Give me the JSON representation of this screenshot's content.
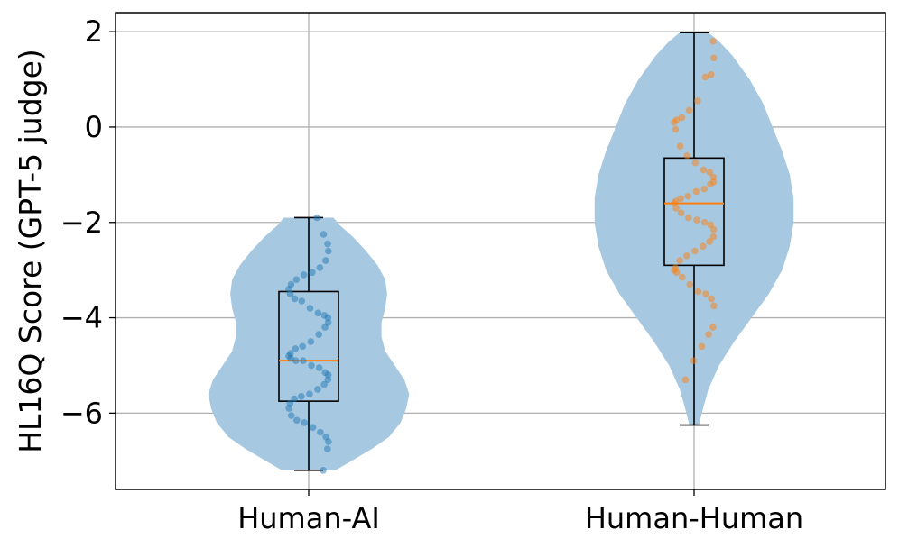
{
  "chart_data": {
    "type": "violin",
    "categories": [
      "Human-AI",
      "Human-Human"
    ],
    "xlabel": "",
    "ylabel": "HL16Q Score (GPT-5 judge)",
    "ylim": [
      -7.6,
      2.4
    ],
    "yticks": [
      2,
      0,
      -2,
      -4,
      -6
    ],
    "ytick_labels": [
      "2",
      "0",
      "−2",
      "−4",
      "−6"
    ],
    "grid": true,
    "colors": {
      "violin_fill": "#a6c8e1",
      "box_edge": "#000000",
      "median": "#ff7f0e",
      "points_series_1": "#1f77b4",
      "points_series_2": "#ff7f0e",
      "grid": "#b0b0b0"
    },
    "series": [
      {
        "category": "Human-AI",
        "min": -7.2,
        "q1": -5.75,
        "median": -4.9,
        "q3": -3.45,
        "max": -1.9,
        "violin_profile": [
          [
            -7.2,
            0.28
          ],
          [
            -7.0,
            0.45
          ],
          [
            -6.75,
            0.66
          ],
          [
            -6.5,
            0.84
          ],
          [
            -6.2,
            0.96
          ],
          [
            -5.9,
            1.02
          ],
          [
            -5.6,
            1.05
          ],
          [
            -5.3,
            1.0
          ],
          [
            -5.0,
            0.9
          ],
          [
            -4.7,
            0.8
          ],
          [
            -4.4,
            0.76
          ],
          [
            -4.1,
            0.76
          ],
          [
            -3.8,
            0.8
          ],
          [
            -3.5,
            0.82
          ],
          [
            -3.2,
            0.8
          ],
          [
            -2.9,
            0.72
          ],
          [
            -2.6,
            0.6
          ],
          [
            -2.3,
            0.46
          ],
          [
            -2.05,
            0.32
          ],
          [
            -1.9,
            0.26
          ]
        ],
        "points": [
          -1.9,
          -2.25,
          -2.45,
          -2.6,
          -2.8,
          -2.95,
          -3.05,
          -3.1,
          -3.2,
          -3.3,
          -3.4,
          -3.5,
          -3.6,
          -3.65,
          -3.8,
          -3.9,
          -3.95,
          -4.0,
          -4.1,
          -4.2,
          -4.35,
          -4.5,
          -4.6,
          -4.65,
          -4.75,
          -4.8,
          -4.85,
          -4.9,
          -4.9,
          -5.0,
          -5.05,
          -5.15,
          -5.2,
          -5.3,
          -5.4,
          -5.5,
          -5.6,
          -5.65,
          -5.7,
          -5.8,
          -5.9,
          -6.05,
          -6.15,
          -6.2,
          -6.3,
          -6.4,
          -6.5,
          -6.6,
          -6.75,
          -7.2
        ]
      },
      {
        "category": "Human-Human",
        "min": -6.25,
        "q1": -2.9,
        "median": -1.6,
        "q3": -0.65,
        "max": 1.98,
        "violin_profile": [
          [
            -6.25,
            0.05
          ],
          [
            -6.0,
            0.08
          ],
          [
            -5.5,
            0.15
          ],
          [
            -5.0,
            0.26
          ],
          [
            -4.5,
            0.42
          ],
          [
            -4.0,
            0.6
          ],
          [
            -3.5,
            0.78
          ],
          [
            -3.0,
            0.92
          ],
          [
            -2.5,
            1.0
          ],
          [
            -2.0,
            1.04
          ],
          [
            -1.5,
            1.04
          ],
          [
            -1.0,
            1.0
          ],
          [
            -0.5,
            0.92
          ],
          [
            0.0,
            0.82
          ],
          [
            0.5,
            0.72
          ],
          [
            1.0,
            0.58
          ],
          [
            1.5,
            0.4
          ],
          [
            1.8,
            0.26
          ],
          [
            1.98,
            0.15
          ]
        ],
        "points": [
          1.8,
          1.45,
          1.1,
          1.05,
          0.55,
          0.35,
          0.2,
          0.15,
          0.1,
          -0.05,
          -0.4,
          -0.6,
          -0.75,
          -0.9,
          -0.95,
          -1.05,
          -1.15,
          -1.2,
          -1.3,
          -1.35,
          -1.45,
          -1.5,
          -1.55,
          -1.6,
          -1.7,
          -1.8,
          -1.9,
          -1.95,
          -2.0,
          -2.05,
          -2.15,
          -2.3,
          -2.4,
          -2.5,
          -2.6,
          -2.7,
          -2.8,
          -2.95,
          -3.0,
          -3.05,
          -3.15,
          -3.3,
          -3.45,
          -3.5,
          -3.6,
          -3.75,
          -4.2,
          -4.35,
          -4.6,
          -4.9,
          -5.3
        ]
      }
    ]
  }
}
